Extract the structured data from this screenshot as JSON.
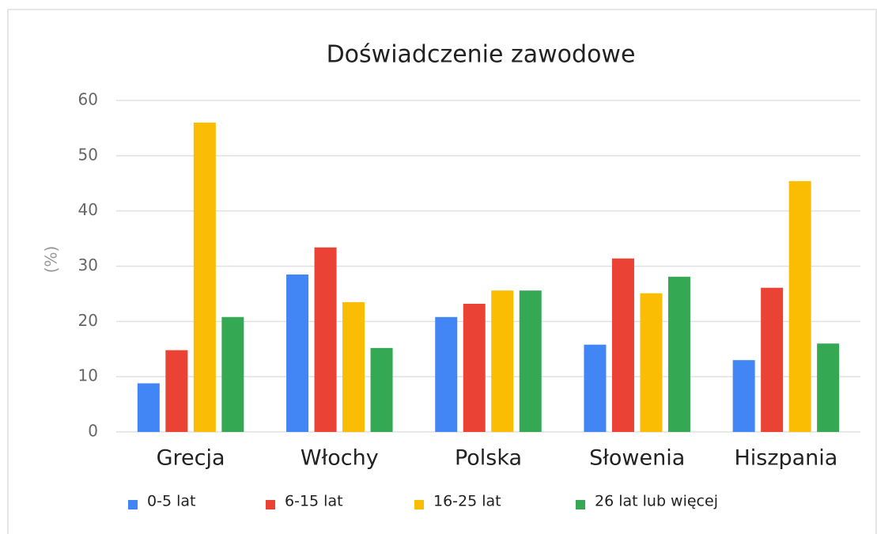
{
  "chart_data": {
    "type": "bar",
    "title": "Doświadczenie zawodowe",
    "y_label": "(%)",
    "categories": [
      "Grecja",
      "Włochy",
      "Polska",
      "Słowenia",
      "Hiszpania"
    ],
    "series": [
      {
        "name": "0-5 lat",
        "color": "#4285f4",
        "values": [
          8.8,
          28.5,
          20.8,
          15.8,
          13
        ]
      },
      {
        "name": "6-15 lat",
        "color": "#ea4335",
        "values": [
          14.8,
          33.4,
          23.2,
          31.4,
          26.1
        ]
      },
      {
        "name": "16-25 lat",
        "color": "#fbbc04",
        "values": [
          56,
          23.5,
          25.6,
          25.1,
          45.4
        ]
      },
      {
        "name": "26 lat lub więcej",
        "color": "#34a853",
        "values": [
          20.8,
          15.2,
          25.6,
          28.1,
          16
        ]
      }
    ],
    "ylim": [
      0,
      60
    ],
    "yticks": [
      0,
      10,
      20,
      30,
      40,
      50,
      60
    ],
    "grid": true,
    "legend": "bottom"
  }
}
